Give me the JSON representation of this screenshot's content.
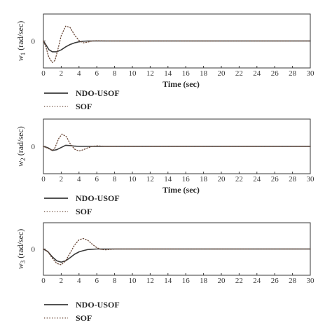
{
  "colors": {
    "ndo": "#3a3a3a",
    "sof": "#6b4a3a",
    "frame": "#3a3a3a",
    "text": "#2a2a2a"
  },
  "chart_data": [
    {
      "type": "line",
      "ylabel": {
        "var": "w",
        "sub": "1",
        "unit": "(rad/sec)"
      },
      "xlabel": "Time (sec)",
      "xlim": [
        0,
        30
      ],
      "ylim": [
        -1,
        1
      ],
      "xticks": [
        0,
        2,
        4,
        6,
        8,
        10,
        12,
        14,
        16,
        18,
        20,
        22,
        24,
        26,
        28,
        30
      ],
      "yticks": [
        0
      ],
      "legend": [
        "NDO-USOF",
        "SOF"
      ],
      "series": [
        {
          "name": "NDO-USOF",
          "style": "solid",
          "x": [
            0,
            0.3,
            0.6,
            1,
            1.5,
            2,
            2.5,
            3,
            3.5,
            4,
            4.5,
            5,
            6,
            8,
            30
          ],
          "y": [
            0,
            -0.15,
            -0.32,
            -0.4,
            -0.4,
            -0.33,
            -0.22,
            -0.13,
            -0.07,
            -0.03,
            -0.01,
            0,
            0,
            0,
            0
          ]
        },
        {
          "name": "SOF",
          "style": "dotted",
          "x": [
            0,
            0.3,
            0.6,
            1,
            1.3,
            1.6,
            2,
            2.5,
            3,
            3.5,
            4,
            4.5,
            5,
            5.5,
            6,
            7,
            30
          ],
          "y": [
            0,
            -0.25,
            -0.6,
            -0.8,
            -0.72,
            -0.35,
            0.2,
            0.55,
            0.5,
            0.22,
            0.02,
            -0.07,
            -0.04,
            0,
            0.01,
            0,
            0
          ]
        }
      ]
    },
    {
      "type": "line",
      "ylabel": {
        "var": "w",
        "sub": "2",
        "unit": "(rad/sec)"
      },
      "xlabel": "Time (sec)",
      "xlim": [
        0,
        30
      ],
      "ylim": [
        -1,
        1
      ],
      "xticks": [
        0,
        2,
        4,
        6,
        8,
        10,
        12,
        14,
        16,
        18,
        20,
        22,
        24,
        26,
        28,
        30
      ],
      "yticks": [
        0
      ],
      "legend": [
        "NDO-USOF",
        "SOF"
      ],
      "series": [
        {
          "name": "NDO-USOF",
          "style": "solid",
          "x": [
            0,
            0.5,
            1,
            1.5,
            2,
            2.5,
            3,
            3.5,
            4,
            5,
            30
          ],
          "y": [
            0,
            -0.05,
            -0.15,
            -0.12,
            -0.04,
            0.04,
            0.03,
            0.01,
            0,
            0,
            0
          ]
        },
        {
          "name": "SOF",
          "style": "dotted",
          "x": [
            0,
            0.5,
            1,
            1.3,
            1.7,
            2.1,
            2.6,
            3,
            3.5,
            4,
            4.5,
            5,
            5.5,
            6,
            7,
            30
          ],
          "y": [
            0,
            -0.07,
            -0.15,
            -0.05,
            0.28,
            0.45,
            0.35,
            0.1,
            -0.1,
            -0.17,
            -0.12,
            -0.05,
            0,
            0.02,
            0,
            0
          ]
        }
      ]
    },
    {
      "type": "line",
      "ylabel": {
        "var": "w",
        "sub": "3",
        "unit": "(rad/sec)"
      },
      "xlabel": "",
      "xlim": [
        0,
        30
      ],
      "ylim": [
        -1,
        1
      ],
      "xticks": [
        0,
        2,
        4,
        6,
        8,
        10,
        12,
        14,
        16,
        18,
        20,
        22,
        24,
        26,
        28,
        30
      ],
      "yticks": [
        0
      ],
      "legend": [
        "NDO-USOF",
        "SOF"
      ],
      "series": [
        {
          "name": "NDO-USOF",
          "style": "solid",
          "x": [
            0,
            0.5,
            1,
            1.5,
            2,
            2.5,
            3,
            3.5,
            4,
            4.5,
            5,
            6,
            7,
            30
          ],
          "y": [
            0,
            -0.1,
            -0.3,
            -0.45,
            -0.5,
            -0.45,
            -0.33,
            -0.2,
            -0.11,
            -0.06,
            -0.02,
            0,
            0,
            0
          ]
        },
        {
          "name": "SOF",
          "style": "dotted",
          "x": [
            0,
            0.5,
            1,
            1.5,
            2,
            2.5,
            3,
            3.5,
            4,
            4.5,
            5,
            5.5,
            6,
            6.5,
            7,
            8,
            30
          ],
          "y": [
            0,
            -0.1,
            -0.35,
            -0.55,
            -0.6,
            -0.45,
            -0.15,
            0.15,
            0.35,
            0.4,
            0.33,
            0.18,
            0.05,
            -0.02,
            -0.03,
            0,
            0
          ]
        }
      ]
    }
  ]
}
